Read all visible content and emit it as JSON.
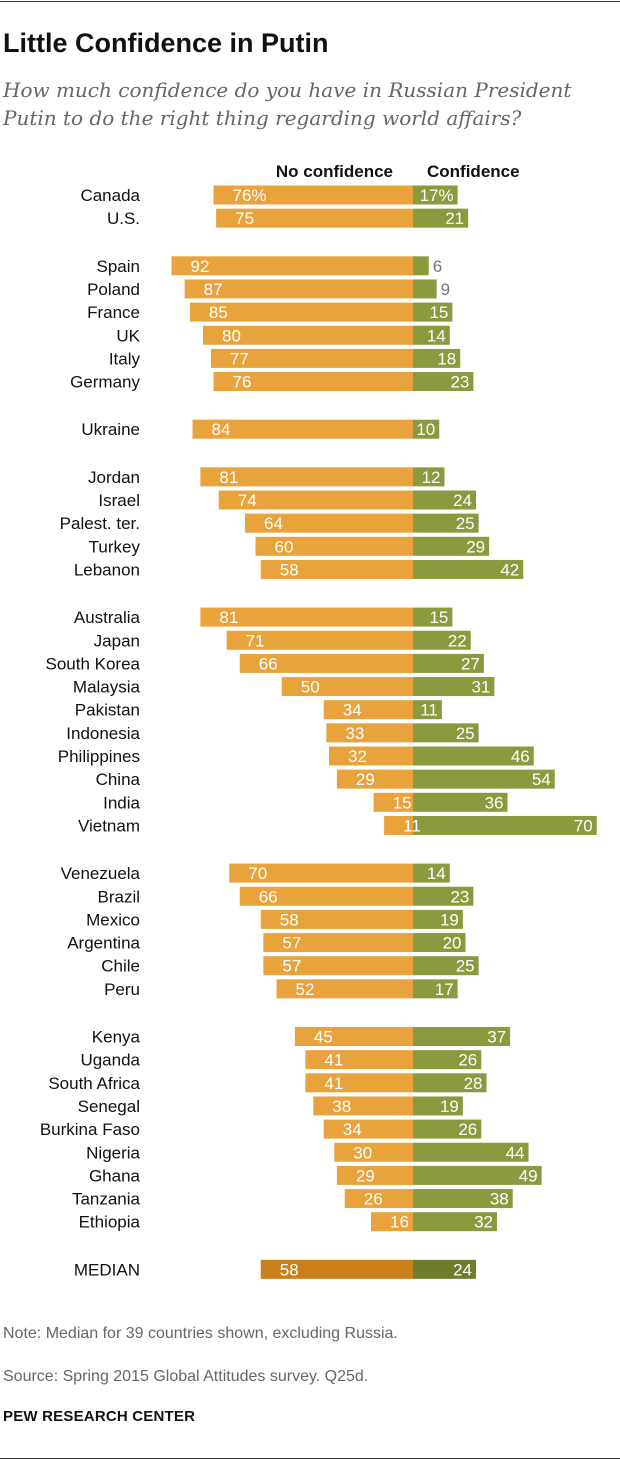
{
  "chart_data": {
    "type": "bar",
    "orientation": "horizontal",
    "layout": "diverging",
    "title": "Little Confidence in Putin",
    "subtitle": "How much confidence do you have in Russian President Putin to do the right thing regarding world affairs?",
    "series": [
      {
        "name": "No confidence",
        "color": "#e8a33d",
        "values": [
          76,
          75,
          92,
          87,
          85,
          80,
          77,
          76,
          84,
          81,
          74,
          64,
          60,
          58,
          81,
          71,
          66,
          50,
          34,
          33,
          32,
          29,
          15,
          11,
          70,
          66,
          58,
          57,
          57,
          52,
          45,
          41,
          41,
          38,
          34,
          30,
          29,
          26,
          16,
          58
        ]
      },
      {
        "name": "Confidence",
        "color": "#8a9a3f",
        "values": [
          17,
          21,
          6,
          9,
          15,
          14,
          18,
          23,
          10,
          12,
          24,
          25,
          29,
          42,
          15,
          22,
          27,
          31,
          11,
          25,
          46,
          54,
          36,
          70,
          14,
          23,
          19,
          20,
          25,
          17,
          37,
          26,
          28,
          19,
          26,
          44,
          49,
          38,
          32,
          24
        ]
      }
    ],
    "categories": [
      "Canada",
      "U.S.",
      "Spain",
      "Poland",
      "France",
      "UK",
      "Italy",
      "Germany",
      "Ukraine",
      "Jordan",
      "Israel",
      "Palest. ter.",
      "Turkey",
      "Lebanon",
      "Australia",
      "Japan",
      "South Korea",
      "Malaysia",
      "Pakistan",
      "Indonesia",
      "Philippines",
      "China",
      "India",
      "Vietnam",
      "Venezuela",
      "Brazil",
      "Mexico",
      "Argentina",
      "Chile",
      "Peru",
      "Kenya",
      "Uganda",
      "South Africa",
      "Senegal",
      "Burkina Faso",
      "Nigeria",
      "Ghana",
      "Tanzania",
      "Ethiopia",
      "MEDIAN"
    ],
    "value_labels": {
      "no_confidence": [
        "76%",
        "75",
        "92",
        "87",
        "85",
        "80",
        "77",
        "76",
        "84",
        "81",
        "74",
        "64",
        "60",
        "58",
        "81",
        "71",
        "66",
        "50",
        "34",
        "33",
        "32",
        "29",
        "15",
        "11",
        "70",
        "66",
        "58",
        "57",
        "57",
        "52",
        "45",
        "41",
        "41",
        "38",
        "34",
        "30",
        "29",
        "26",
        "16",
        "58"
      ],
      "confidence": [
        "17%",
        "21",
        "6",
        "9",
        "15",
        "14",
        "18",
        "23",
        "10",
        "12",
        "24",
        "25",
        "29",
        "42",
        "15",
        "22",
        "27",
        "31",
        "11",
        "25",
        "46",
        "54",
        "36",
        "70",
        "14",
        "23",
        "19",
        "20",
        "25",
        "17",
        "37",
        "26",
        "28",
        "19",
        "26",
        "44",
        "49",
        "38",
        "32",
        "24"
      ]
    },
    "groups": [
      2,
      6,
      1,
      5,
      10,
      6,
      9,
      1
    ],
    "highlight_category": "MEDIAN",
    "highlight_colors": {
      "no_confidence": "#c9801a",
      "confidence": "#6d7d2a"
    },
    "xlim": [
      -100,
      100
    ]
  },
  "note": "Note: Median for 39 countries shown, excluding Russia.",
  "source": "Source: Spring 2015 Global Attitudes survey. Q25d.",
  "organization": "PEW RESEARCH CENTER"
}
